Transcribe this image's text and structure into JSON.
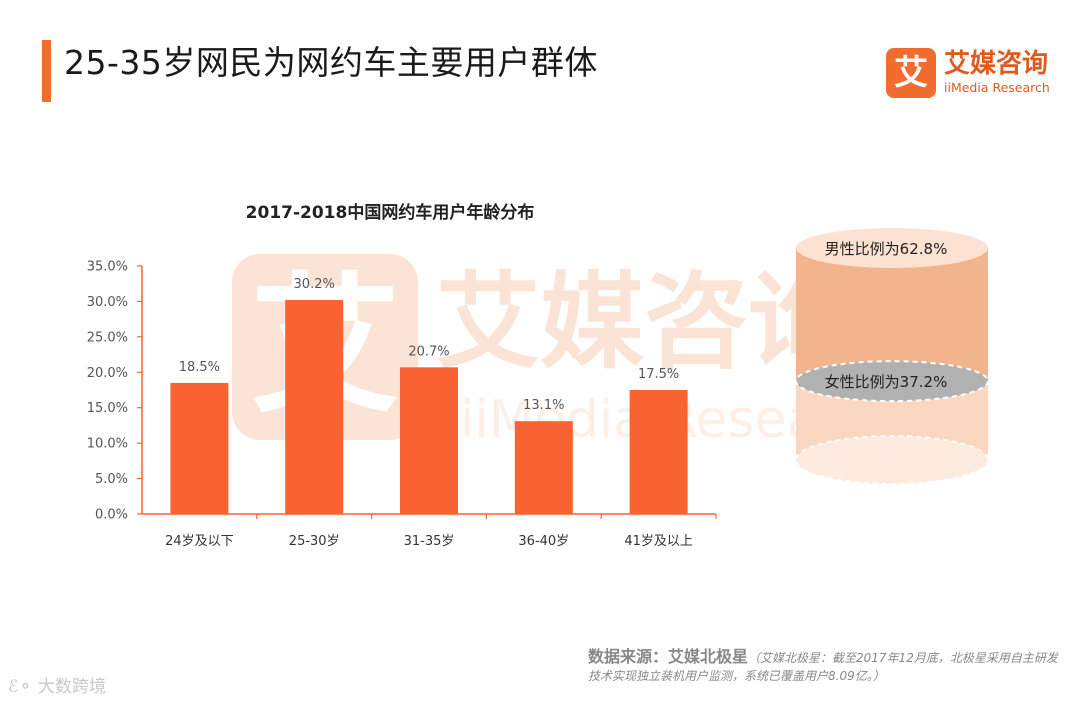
{
  "header": {
    "title": "25-35岁网民为网约车主要用户群体",
    "logo_mark": "艾",
    "logo_cn": "艾媒咨询",
    "logo_en": "iiMedia Research"
  },
  "watermark": {
    "mark": "艾",
    "cn": "艾媒咨询",
    "en": "iiMedia Research"
  },
  "chart_data": {
    "type": "bar",
    "title": "2017-2018中国网约车用户年龄分布",
    "categories": [
      "24岁及以下",
      "25-30岁",
      "31-35岁",
      "36-40岁",
      "41岁及以上"
    ],
    "values": [
      18.5,
      30.2,
      20.7,
      13.1,
      17.5
    ],
    "value_labels": [
      "18.5%",
      "30.2%",
      "20.7%",
      "13.1%",
      "17.5%"
    ],
    "ylim": [
      0,
      35
    ],
    "yticks": [
      "0.0%",
      "5.0%",
      "10.0%",
      "15.0%",
      "20.0%",
      "25.0%",
      "30.0%",
      "35.0%"
    ],
    "bar_color": "#f96332",
    "grid": false
  },
  "gender": {
    "male_label": "男性比例为62.8%",
    "female_label": "女性比例为37.2%",
    "male_share": 62.8,
    "female_share": 37.2,
    "colors": {
      "male": "#f2b48c",
      "female": "#b1b1b1"
    }
  },
  "source": {
    "label": "数据来源：艾媒北极星",
    "note": "（艾媒北极星：截至2017年12月底，北极星采用自主研发技术实现独立装机用户监测，系统已覆盖用户8.09亿。）"
  },
  "footer": {
    "mark": "大数跨境"
  }
}
